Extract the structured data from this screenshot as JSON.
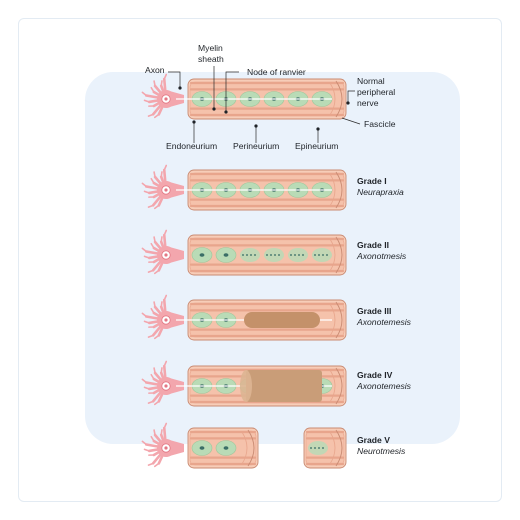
{
  "labels": {
    "axon": "Axon",
    "myelin_sheath_line1": "Myelin",
    "myelin_sheath_line2": "sheath",
    "node_of_ranvier": "Node of ranvier",
    "normal_line1": "Normal",
    "normal_line2": "peripheral",
    "normal_line3": "nerve",
    "fascicle": "Fascicle",
    "endoneurium": "Endoneurium",
    "perineurium": "Perineurium",
    "epineurium": "Epineurium"
  },
  "grades": [
    {
      "grade": "Grade I",
      "name": "Neurapraxia"
    },
    {
      "grade": "Grade II",
      "name": "Axonotmesis"
    },
    {
      "grade": "Grade III",
      "name": "Axonotemesis"
    },
    {
      "grade": "Grade IV",
      "name": "Axonotemesis"
    },
    {
      "grade": "Grade V",
      "name": "Neurotmesis"
    }
  ],
  "colors": {
    "outer_fill": "#f7cdb8",
    "band_stroke": "#e8a58c",
    "edge": "#c98a72",
    "myelin": "#b9dbb6",
    "axon_dark": "#3b6e67",
    "neuron": "#f3a6ad",
    "neuron_core": "#ffffff",
    "damage": "#c4916a",
    "scar": "#c99d78",
    "background_panel": "#eaf2fb"
  }
}
